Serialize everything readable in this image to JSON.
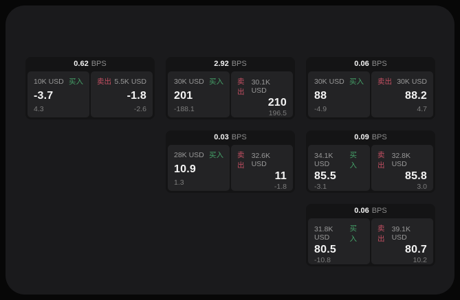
{
  "labels": {
    "bps_unit": "BPS",
    "buy": "买入",
    "sell": "卖出"
  },
  "colors": {
    "page_background": "#070707",
    "surface": "#1a1a1c",
    "card_background": "#141415",
    "panel_background": "#232325",
    "buy_green": "#45a168",
    "sell_red": "#c34f62",
    "value_white": "#f4f4f4",
    "muted_gray": "#7d7d7d"
  },
  "cards": [
    {
      "bps": "0.62",
      "buy": {
        "amount": "10K USD",
        "value": "-3.7",
        "sub": "4.3"
      },
      "sell": {
        "amount": "5.5K USD",
        "value": "-1.8",
        "sub": "-2.6"
      }
    },
    {
      "bps": "2.92",
      "buy": {
        "amount": "30K USD",
        "value": "201",
        "sub": "-188.1"
      },
      "sell": {
        "amount": "30.1K USD",
        "value": "210",
        "sub": "196.5"
      }
    },
    {
      "bps": "0.06",
      "buy": {
        "amount": "30K USD",
        "value": "88",
        "sub": "-4.9"
      },
      "sell": {
        "amount": "30K USD",
        "value": "88.2",
        "sub": "4.7"
      }
    },
    {
      "bps": "0.03",
      "buy": {
        "amount": "28K USD",
        "value": "10.9",
        "sub": "1.3"
      },
      "sell": {
        "amount": "32.6K USD",
        "value": "11",
        "sub": "-1.8"
      }
    },
    {
      "bps": "0.09",
      "buy": {
        "amount": "34.1K USD",
        "value": "85.5",
        "sub": "-3.1"
      },
      "sell": {
        "amount": "32.8K USD",
        "value": "85.8",
        "sub": "3.0"
      }
    },
    {
      "bps": "0.06",
      "buy": {
        "amount": "31.8K USD",
        "value": "80.5",
        "sub": "-10.8"
      },
      "sell": {
        "amount": "39.1K USD",
        "value": "80.7",
        "sub": "10.2"
      }
    }
  ]
}
